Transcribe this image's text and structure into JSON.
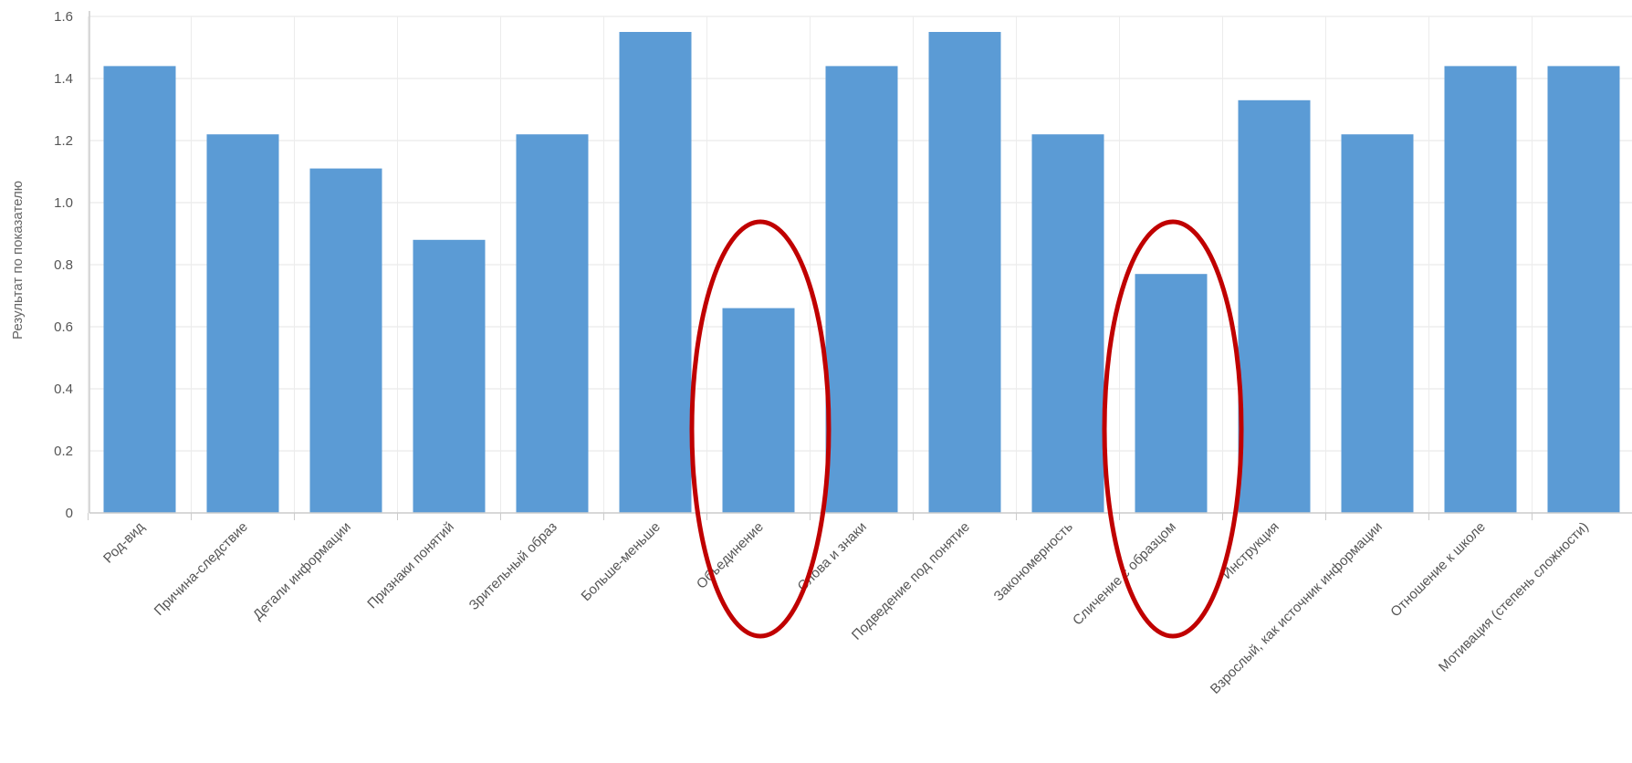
{
  "chart_data": {
    "type": "bar",
    "title": "",
    "xlabel": "",
    "ylabel": "Результат по показателю",
    "ylim": [
      0,
      1.6
    ],
    "yticks": [
      "0",
      "0.2",
      "0.4",
      "0.6",
      "0.8",
      "1.0",
      "1.2",
      "1.4",
      "1.6"
    ],
    "grid": true,
    "bar_color": "#5b9bd5",
    "highlight_color": "#c00000",
    "categories": [
      "Род-вид",
      "Причина-следствие",
      "Детали информации",
      "Признаки понятий",
      "Зрительный образ",
      "Больше-меньше",
      "Объединение",
      "Слова и знаки",
      "Подведение под понятие",
      "Закономерность",
      "Сличение с образцом",
      "Инструкция",
      "Взрослый, как источник информации",
      "Отношение к школе",
      "Мотивация (степень сложности)"
    ],
    "values": [
      1.44,
      1.22,
      1.11,
      0.88,
      1.22,
      1.55,
      0.66,
      1.44,
      1.55,
      1.22,
      0.77,
      1.33,
      1.22,
      1.44,
      1.44
    ],
    "highlighted": [
      "Объединение",
      "Сличение с образцом"
    ]
  }
}
